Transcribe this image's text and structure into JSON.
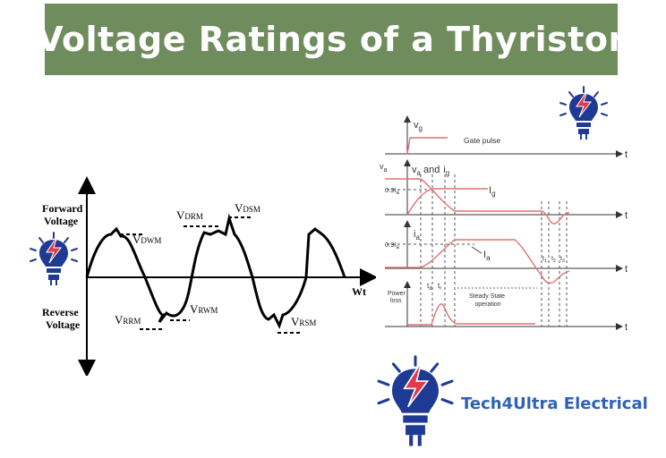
{
  "title": "Voltage Ratings of a Thyristor",
  "brand": "Tech4Ultra Electrical",
  "colors": {
    "banner": "#6e8c5c",
    "brand_text": "#2e62b4",
    "icon_blue": "#1f3a93",
    "bolt_red": "#e23a4c",
    "trace_red": "#e07070"
  },
  "icons": [
    "lightbulb-bolt-icon",
    "lightbulb-bolt-icon",
    "lightbulb-bolt-icon"
  ],
  "waveform": {
    "forward_label_1": "Forward",
    "forward_label_2": "Voltage",
    "reverse_label_1": "Reverse",
    "reverse_label_2": "Voltage",
    "x_axis": "Wt",
    "vdwm": "V",
    "vdwm_sub": "DWM",
    "vdrm": "V",
    "vdrm_sub": "DRM",
    "vdsm": "V",
    "vdsm_sub": "DSM",
    "vrrm": "V",
    "vrrm_sub": "RRM",
    "vrwm": "V",
    "vrwm_sub": "RWM",
    "vrsm": "V",
    "vrsm_sub": "RSM"
  },
  "timing": {
    "t": "t",
    "vg": "v",
    "vg_sub": "g",
    "gate_pulse": "Gate pulse",
    "va": "v",
    "va_sub": "a",
    "va_and": "v",
    "va_and_sub": "a",
    "and": "and",
    "ig": "i",
    "ig_sub": "g",
    "ig_label": "I",
    "ig_label_sub": "g",
    "ia": "i",
    "ia_sub": "a",
    "ia_label": "I",
    "ia_label_sub": "a",
    "pct_1": "0.9I",
    "pct_1_sub": "a",
    "pct_2": "0.9I",
    "pct_2_sub": "a",
    "td": "t",
    "td_sub": "d",
    "tr": "t",
    "tr_sub": "r",
    "t1": "t",
    "t1_sub": "1",
    "t2": "t",
    "t2_sub": "2",
    "t3": "t",
    "t3_sub": "3",
    "power_loss_1": "Power",
    "power_loss_2": "loss",
    "steady_1": "Steady State",
    "steady_2": "operation"
  }
}
